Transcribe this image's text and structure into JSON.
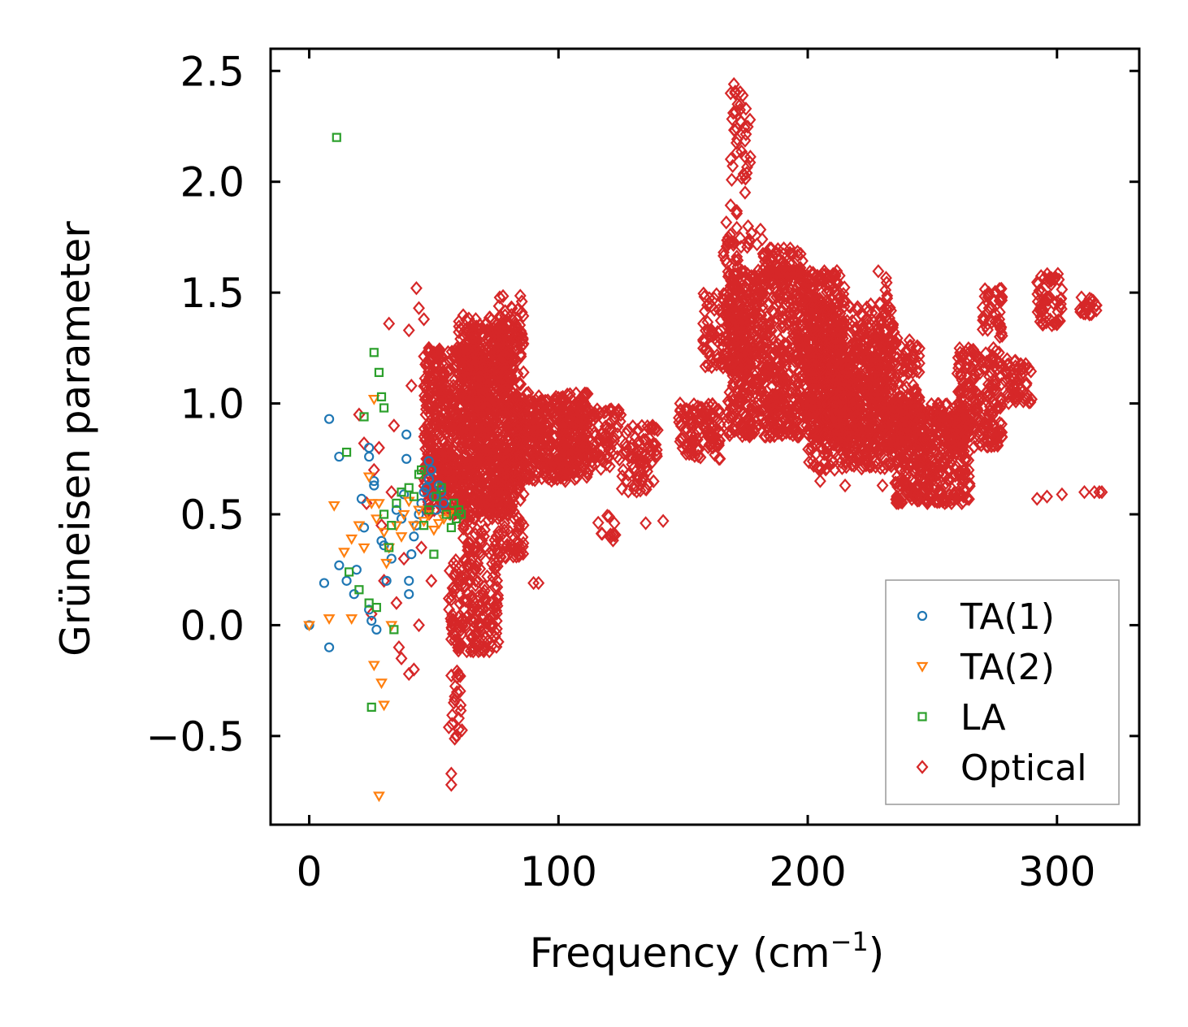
{
  "chart_data": {
    "type": "scatter",
    "xlabel": "Frequency (cm",
    "xlabel_sup": "−1",
    "xlabel_tail": ")",
    "ylabel": "Grüneisen parameter",
    "xlim": [
      -15.5,
      333
    ],
    "ylim": [
      -0.9,
      2.6
    ],
    "x_ticks": [
      0,
      100,
      200,
      300
    ],
    "x_tick_labels": [
      "0",
      "100",
      "200",
      "300"
    ],
    "y_ticks": [
      -0.5,
      0.0,
      0.5,
      1.0,
      1.5,
      2.0,
      2.5
    ],
    "y_tick_labels": [
      "−0.5",
      "0.0",
      "0.5",
      "1.0",
      "1.5",
      "2.0",
      "2.5"
    ],
    "legend_position": "lower-right",
    "series": [
      {
        "name": "TA(1)",
        "marker": "circle",
        "color": "#1f77b4",
        "points": [
          [
            0,
            0.0
          ],
          [
            6,
            0.19
          ],
          [
            8,
            0.93
          ],
          [
            8,
            -0.1
          ],
          [
            12,
            0.76
          ],
          [
            12,
            0.27
          ],
          [
            15,
            0.2
          ],
          [
            18,
            0.14
          ],
          [
            19,
            0.25
          ],
          [
            21,
            0.57
          ],
          [
            22,
            0.44
          ],
          [
            24,
            0.8
          ],
          [
            24,
            0.76
          ],
          [
            24,
            0.07
          ],
          [
            25,
            0.02
          ],
          [
            26,
            0.65
          ],
          [
            26,
            0.63
          ],
          [
            27,
            -0.02
          ],
          [
            29,
            0.38
          ],
          [
            30,
            0.36
          ],
          [
            31,
            0.2
          ],
          [
            33,
            0.3
          ],
          [
            35,
            0.52
          ],
          [
            37,
            0.48
          ],
          [
            38,
            0.59
          ],
          [
            39,
            0.86
          ],
          [
            39,
            0.75
          ],
          [
            40,
            0.14
          ],
          [
            40,
            0.2
          ],
          [
            41,
            0.32
          ],
          [
            42,
            0.4
          ],
          [
            43,
            0.45
          ],
          [
            44,
            0.5
          ],
          [
            45,
            0.55
          ],
          [
            46,
            0.6
          ],
          [
            47,
            0.62
          ],
          [
            48,
            0.66
          ],
          [
            48,
            0.74
          ],
          [
            49,
            0.7
          ],
          [
            50,
            0.58
          ],
          [
            51,
            0.52
          ],
          [
            52,
            0.63
          ],
          [
            53,
            0.6
          ],
          [
            54,
            0.55
          ]
        ]
      },
      {
        "name": "TA(2)",
        "marker": "triangle-down",
        "color": "#ff7f0e",
        "points": [
          [
            0,
            0.0
          ],
          [
            8,
            0.03
          ],
          [
            10,
            0.54
          ],
          [
            14,
            0.33
          ],
          [
            17,
            0.39
          ],
          [
            17,
            0.03
          ],
          [
            20,
            0.45
          ],
          [
            22,
            0.35
          ],
          [
            24,
            0.67
          ],
          [
            25,
            0.55
          ],
          [
            26,
            -0.18
          ],
          [
            26,
            1.02
          ],
          [
            27,
            0.48
          ],
          [
            28,
            0.55
          ],
          [
            28,
            -0.77
          ],
          [
            29,
            -0.26
          ],
          [
            30,
            -0.36
          ],
          [
            30,
            0.42
          ],
          [
            31,
            0.28
          ],
          [
            32,
            0.35
          ],
          [
            33,
            0.0
          ],
          [
            35,
            0.45
          ],
          [
            37,
            0.4
          ],
          [
            38,
            0.5
          ],
          [
            40,
            0.56
          ],
          [
            42,
            0.45
          ],
          [
            44,
            0.52
          ],
          [
            46,
            0.47
          ],
          [
            48,
            0.5
          ],
          [
            50,
            0.43
          ],
          [
            52,
            0.46
          ],
          [
            54,
            0.48
          ],
          [
            56,
            0.5
          ]
        ]
      },
      {
        "name": "LA",
        "marker": "square",
        "color": "#2ca02c",
        "points": [
          [
            11,
            2.2
          ],
          [
            15,
            0.78
          ],
          [
            16,
            0.24
          ],
          [
            20,
            0.16
          ],
          [
            22,
            0.94
          ],
          [
            24,
            0.1
          ],
          [
            25,
            -0.37
          ],
          [
            26,
            1.23
          ],
          [
            27,
            0.08
          ],
          [
            28,
            1.14
          ],
          [
            29,
            1.03
          ],
          [
            30,
            0.98
          ],
          [
            30,
            0.5
          ],
          [
            32,
            0.35
          ],
          [
            33,
            0.45
          ],
          [
            34,
            -0.02
          ],
          [
            35,
            0.55
          ],
          [
            37,
            0.6
          ],
          [
            40,
            0.62
          ],
          [
            42,
            0.58
          ],
          [
            44,
            0.68
          ],
          [
            45,
            0.7
          ],
          [
            46,
            0.45
          ],
          [
            48,
            0.52
          ],
          [
            50,
            0.32
          ],
          [
            51,
            0.58
          ],
          [
            53,
            0.62
          ],
          [
            55,
            0.5
          ],
          [
            57,
            0.44
          ],
          [
            58,
            0.55
          ],
          [
            59,
            0.48
          ],
          [
            60,
            0.52
          ],
          [
            61,
            0.5
          ]
        ]
      },
      {
        "name": "Optical",
        "marker": "diamond",
        "color": "#d62728",
        "points": [
          [
            20,
            0.95
          ],
          [
            22,
            0.82
          ],
          [
            23,
            0.55
          ],
          [
            25,
            0.05
          ],
          [
            26,
            0.7
          ],
          [
            28,
            0.8
          ],
          [
            29,
            0.45
          ],
          [
            30,
            0.2
          ],
          [
            32,
            1.36
          ],
          [
            33,
            0.6
          ],
          [
            34,
            0.9
          ],
          [
            35,
            0.1
          ],
          [
            36,
            -0.1
          ],
          [
            37,
            -0.15
          ],
          [
            38,
            0.3
          ],
          [
            40,
            1.33
          ],
          [
            40,
            -0.22
          ],
          [
            41,
            1.08
          ],
          [
            42,
            -0.2
          ],
          [
            43,
            1.52
          ],
          [
            44,
            1.43
          ],
          [
            44,
            0.0
          ],
          [
            45,
            0.35
          ],
          [
            46,
            1.38
          ],
          [
            47,
            0.75
          ],
          [
            48,
            1.25
          ],
          [
            49,
            0.2
          ],
          [
            50,
            1.13
          ],
          [
            51,
            1.22
          ],
          [
            52,
            0.9
          ],
          [
            53,
            0.75
          ],
          [
            54,
            1.1
          ],
          [
            55,
            0.7
          ],
          [
            56,
            0.12
          ],
          [
            57,
            -0.67
          ],
          [
            57,
            -0.72
          ],
          [
            58,
            -0.35
          ],
          [
            58,
            0.02
          ],
          [
            59,
            -0.5
          ],
          [
            60,
            -0.42
          ],
          [
            61,
            0.18
          ]
        ],
        "clusters": [
          {
            "x": [
              46,
              82
            ],
            "y": [
              0.5,
              1.25
            ],
            "n": 900
          },
          {
            "x": [
              60,
              86
            ],
            "y": [
              0.3,
              1.4
            ],
            "n": 500
          },
          {
            "x": [
              56,
              76
            ],
            "y": [
              -0.12,
              0.3
            ],
            "n": 180
          },
          {
            "x": [
              56,
              62
            ],
            "y": [
              -0.55,
              -0.2
            ],
            "n": 20
          },
          {
            "x": [
              65,
              80
            ],
            "y": [
              1.0,
              1.35
            ],
            "n": 120
          },
          {
            "x": [
              76,
              86
            ],
            "y": [
              1.25,
              1.5
            ],
            "n": 40
          },
          {
            "x": [
              82,
              112
            ],
            "y": [
              0.65,
              1.05
            ],
            "n": 450
          },
          {
            "x": [
              100,
              125
            ],
            "y": [
              0.7,
              0.98
            ],
            "n": 160
          },
          {
            "x": [
              125,
              140
            ],
            "y": [
              0.6,
              0.9
            ],
            "n": 80
          },
          {
            "x": [
              115,
              125
            ],
            "y": [
              0.38,
              0.5
            ],
            "n": 12
          },
          {
            "x": [
              148,
              165
            ],
            "y": [
              0.75,
              1.0
            ],
            "n": 120
          },
          {
            "x": [
              158,
              175
            ],
            "y": [
              1.15,
              1.5
            ],
            "n": 120
          },
          {
            "x": [
              165,
              172
            ],
            "y": [
              1.55,
              1.9
            ],
            "n": 25
          },
          {
            "x": [
              169,
              177
            ],
            "y": [
              1.95,
              2.45
            ],
            "n": 40
          },
          {
            "x": [
              172,
              182
            ],
            "y": [
              1.7,
              1.8
            ],
            "n": 10
          },
          {
            "x": [
              168,
              215
            ],
            "y": [
              0.85,
              1.6
            ],
            "n": 1100
          },
          {
            "x": [
              182,
              198
            ],
            "y": [
              1.55,
              1.7
            ],
            "n": 60
          },
          {
            "x": [
              200,
              235
            ],
            "y": [
              0.7,
              1.45
            ],
            "n": 600
          },
          {
            "x": [
              210,
              245
            ],
            "y": [
              0.8,
              1.3
            ],
            "n": 400
          },
          {
            "x": [
              228,
              232
            ],
            "y": [
              1.4,
              1.6
            ],
            "n": 10
          },
          {
            "x": [
              235,
              265
            ],
            "y": [
              0.55,
              1.0
            ],
            "n": 500
          },
          {
            "x": [
              260,
              278
            ],
            "y": [
              0.8,
              1.25
            ],
            "n": 200
          },
          {
            "x": [
              270,
              278
            ],
            "y": [
              1.3,
              1.52
            ],
            "n": 40
          },
          {
            "x": [
              278,
              290
            ],
            "y": [
              1.0,
              1.2
            ],
            "n": 60
          },
          {
            "x": [
              292,
              302
            ],
            "y": [
              1.35,
              1.6
            ],
            "n": 60
          },
          {
            "x": [
              308,
              316
            ],
            "y": [
              1.4,
              1.48
            ],
            "n": 20
          }
        ],
        "extra_points": [
          [
            135,
            0.46
          ],
          [
            142,
            0.47
          ],
          [
            92,
            0.19
          ],
          [
            90,
            0.19
          ],
          [
            296,
            0.58
          ],
          [
            302,
            0.59
          ],
          [
            311,
            0.6
          ],
          [
            315,
            0.6
          ],
          [
            317,
            0.6
          ],
          [
            318,
            0.6
          ],
          [
            292,
            0.57
          ],
          [
            230,
            0.63
          ],
          [
            215,
            0.63
          ],
          [
            205,
            0.65
          ],
          [
            170,
            1.48
          ],
          [
            180,
            0.9
          ],
          [
            255,
            0.55
          ],
          [
            248,
            0.55
          ]
        ]
      }
    ]
  }
}
